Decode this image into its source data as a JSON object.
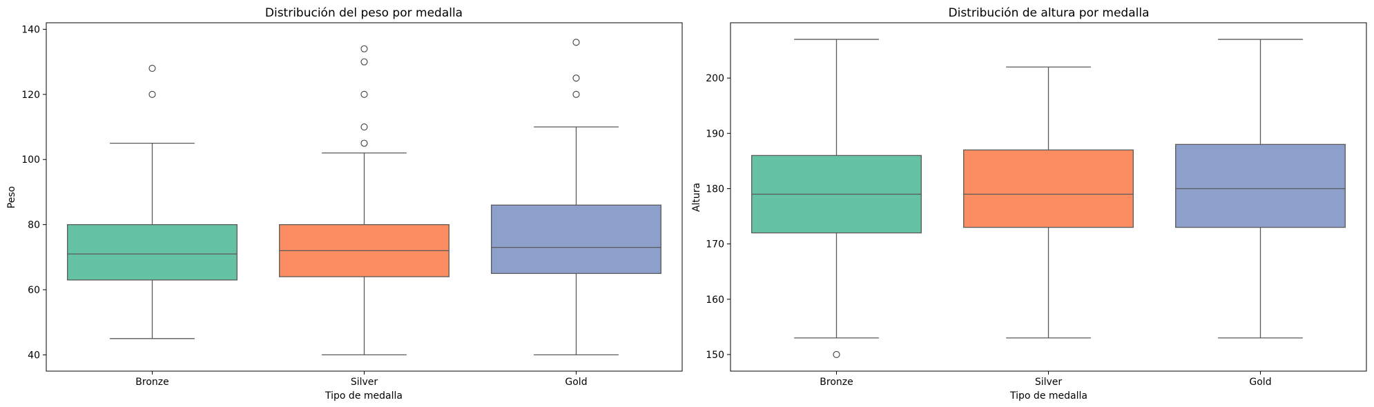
{
  "chart_data": [
    {
      "type": "box",
      "title": "Distribución del peso por medalla",
      "xlabel": "Tipo de medalla",
      "ylabel": "Peso",
      "ylim": [
        35,
        142
      ],
      "yticks": [
        40,
        60,
        80,
        100,
        120,
        140
      ],
      "categories": [
        "Bronze",
        "Silver",
        "Gold"
      ],
      "colors": [
        "#66c2a5",
        "#fc8d62",
        "#8da0cb"
      ],
      "boxes": [
        {
          "category": "Bronze",
          "whisker_low": 45,
          "q1": 63,
          "median": 71,
          "q3": 80,
          "whisker_high": 105,
          "outliers": [
            120,
            128
          ]
        },
        {
          "category": "Silver",
          "whisker_low": 40,
          "q1": 64,
          "median": 72,
          "q3": 80,
          "whisker_high": 102,
          "outliers": [
            105,
            110,
            120,
            130,
            134
          ]
        },
        {
          "category": "Gold",
          "whisker_low": 40,
          "q1": 65,
          "median": 73,
          "q3": 86,
          "whisker_high": 110,
          "outliers": [
            120,
            125,
            136
          ]
        }
      ],
      "grid": false
    },
    {
      "type": "box",
      "title": "Distribución de altura por medalla",
      "xlabel": "Tipo de medalla",
      "ylabel": "Altura",
      "ylim": [
        147,
        210
      ],
      "yticks": [
        150,
        160,
        170,
        180,
        190,
        200
      ],
      "categories": [
        "Bronze",
        "Silver",
        "Gold"
      ],
      "colors": [
        "#66c2a5",
        "#fc8d62",
        "#8da0cb"
      ],
      "boxes": [
        {
          "category": "Bronze",
          "whisker_low": 153,
          "q1": 172,
          "median": 179,
          "q3": 186,
          "whisker_high": 207,
          "outliers": [
            150
          ]
        },
        {
          "category": "Silver",
          "whisker_low": 153,
          "q1": 173,
          "median": 179,
          "q3": 187,
          "whisker_high": 202,
          "outliers": []
        },
        {
          "category": "Gold",
          "whisker_low": 153,
          "q1": 173,
          "median": 180,
          "q3": 188,
          "whisker_high": 207,
          "outliers": []
        }
      ],
      "grid": false
    }
  ]
}
